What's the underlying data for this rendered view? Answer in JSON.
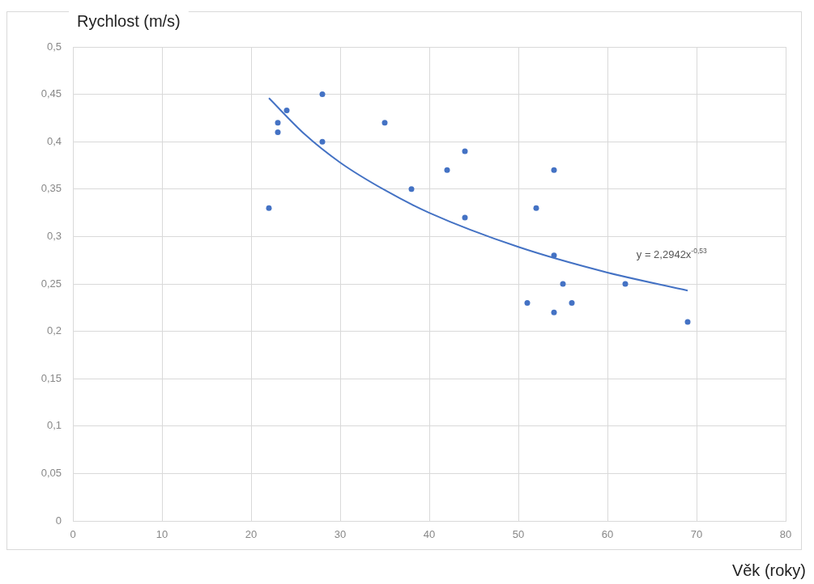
{
  "chart_data": {
    "type": "scatter",
    "xlabel": "Věk (roky)",
    "ylabel": "Rychlost (m/s)",
    "x": [
      22,
      23,
      23,
      24,
      28,
      28,
      35,
      38,
      42,
      44,
      44,
      51,
      52,
      54,
      54,
      54,
      55,
      56,
      62,
      69
    ],
    "series": [
      {
        "color": "#4472c4",
        "marker": "circle",
        "values": [
          0.33,
          0.42,
          0.41,
          0.433,
          0.45,
          0.4,
          0.42,
          0.35,
          0.37,
          0.39,
          0.32,
          0.23,
          0.33,
          0.37,
          0.28,
          0.22,
          0.25,
          0.23,
          0.25,
          0.21
        ]
      },
      {
        "type": "line",
        "color": "#4472c4",
        "marker": "none",
        "x": [
          22,
          26,
          30,
          35,
          40,
          50,
          60,
          69
        ],
        "values": [
          0.446,
          0.408,
          0.378,
          0.349,
          0.325,
          0.289,
          0.262,
          0.243
        ]
      }
    ],
    "xlim": [
      0,
      80
    ],
    "xticks": [
      0,
      10,
      20,
      30,
      40,
      50,
      60,
      70,
      80
    ],
    "ylim": [
      0,
      0.5
    ],
    "yticks": [
      0,
      {
        "value": 0.05,
        "label": "0,05"
      },
      {
        "value": 0.1,
        "label": "0,1"
      },
      {
        "value": 0.15,
        "label": "0,15"
      },
      {
        "value": 0.2,
        "label": "0,2"
      },
      {
        "value": 0.25,
        "label": "0,25"
      },
      {
        "value": 0.3,
        "label": "0,3"
      },
      {
        "value": 0.35,
        "label": "0,35"
      },
      {
        "value": 0.4,
        "label": "0,4"
      },
      {
        "value": 0.45,
        "label": "0,45"
      },
      {
        "value": 0.5,
        "label": "0,5"
      }
    ],
    "grid": true,
    "legend": false,
    "annotations": [
      "y = 2,2942x$^{-0,53}$"
    ]
  }
}
